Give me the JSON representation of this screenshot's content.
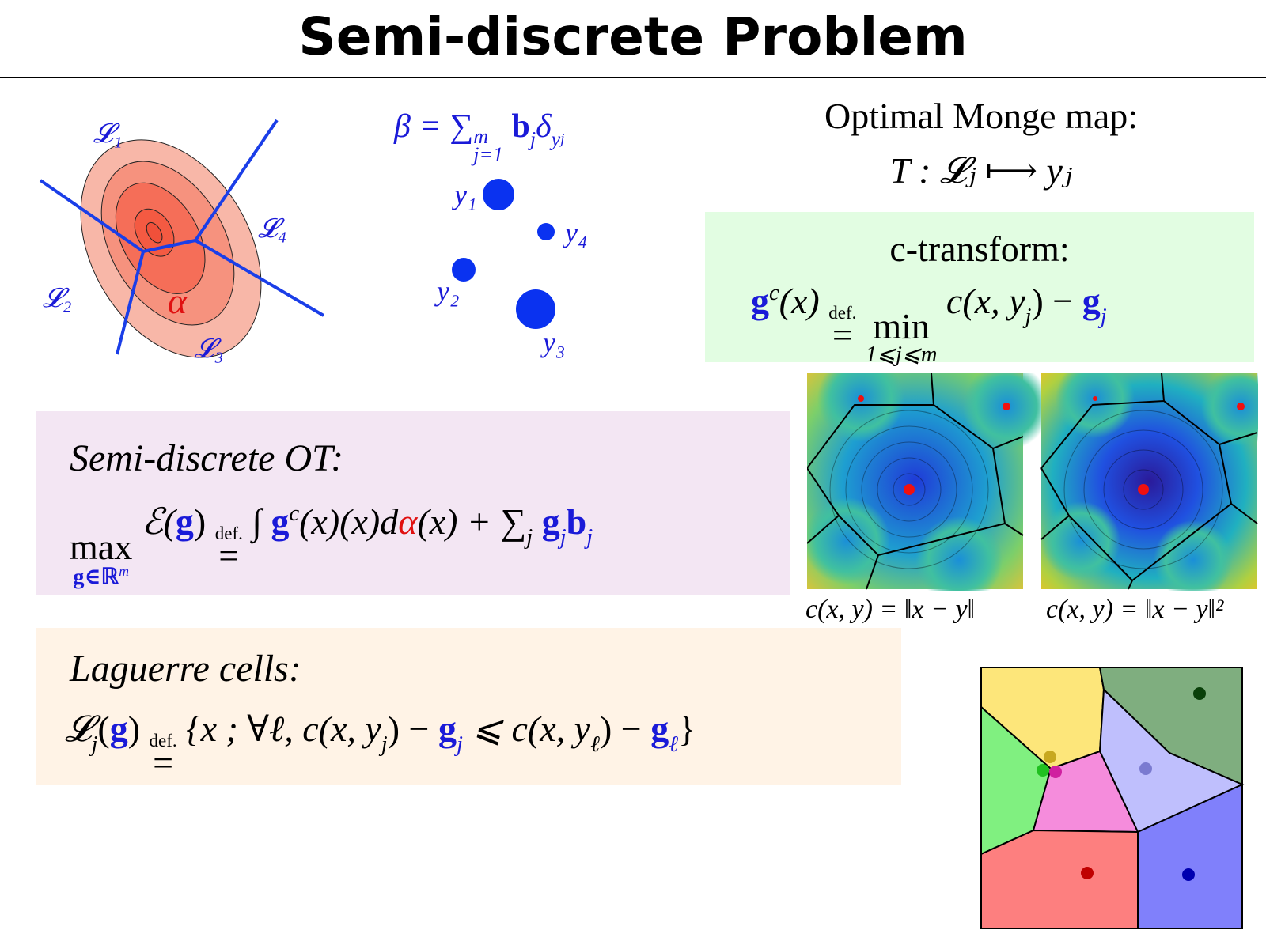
{
  "header": {
    "title": "Semi-discrete Problem"
  },
  "diagram": {
    "cell_labels": [
      "𝓛₁",
      "𝓛₂",
      "𝓛₃",
      "𝓛₄"
    ],
    "density_label": "α"
  },
  "measure": {
    "formula": [
      "β = ",
      "∑",
      "m",
      "j=1",
      "b",
      "j",
      "δ",
      "y",
      "j"
    ],
    "point_labels": [
      "y₁",
      "y₂",
      "y₃",
      "y₄"
    ]
  },
  "monge": {
    "heading": "Optimal Monge map:",
    "formula": "T : 𝓛ⱼ ⟼ yⱼ"
  },
  "c_transform": {
    "heading": "c-transform:",
    "formula": [
      "g",
      "c",
      "(x) ",
      "def.",
      "=",
      "min",
      "1⩽j⩽m",
      " c(x, y",
      "j",
      ") − ",
      "g",
      "j"
    ]
  },
  "cost_captions": [
    "c(x, y) = ‖x − y‖",
    "c(x, y) = ‖x − y‖²"
  ],
  "semi_discrete_ot": {
    "heading": "Semi-discrete OT:",
    "formula": [
      "max",
      "g∈ℝ",
      "m",
      " ℰ(",
      "g",
      ") ",
      "def.",
      "=",
      " ∫ ",
      "g",
      "c",
      "(x)(x)d",
      "α",
      "(x) + ∑",
      "j",
      " g",
      "j",
      "b",
      "j"
    ]
  },
  "laguerre": {
    "heading": "Laguerre cells:",
    "formula": [
      "𝓛",
      "j",
      "(",
      "g",
      ") ",
      "def.",
      "=",
      " {x ; ∀ℓ, c(x, y",
      "j",
      ") − ",
      "g",
      "j",
      " ⩽ c(x, y",
      "ℓ",
      ") − ",
      "g",
      "ℓ",
      "}"
    ]
  }
}
